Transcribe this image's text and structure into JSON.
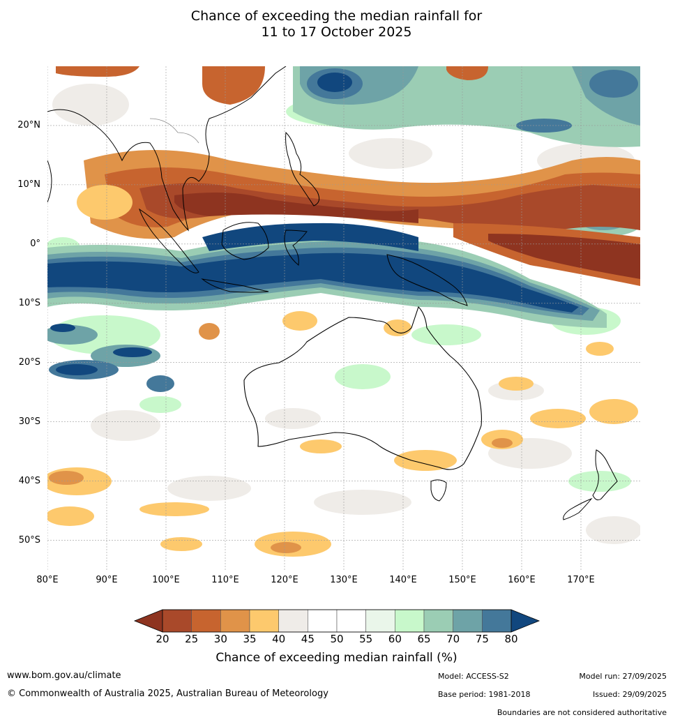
{
  "title": {
    "line1": "Chance of exceeding the median rainfall for",
    "line2": "11 to 17 October 2025"
  },
  "lat_ticks": [
    {
      "label": "20°N",
      "lat": 20
    },
    {
      "label": "10°N",
      "lat": 10
    },
    {
      "label": "0°",
      "lat": 0
    },
    {
      "label": "10°S",
      "lat": -10
    },
    {
      "label": "20°S",
      "lat": -20
    },
    {
      "label": "30°S",
      "lat": -30
    },
    {
      "label": "40°S",
      "lat": -40
    },
    {
      "label": "50°S",
      "lat": -50
    }
  ],
  "lon_ticks": [
    {
      "label": "80°E",
      "lon": 80
    },
    {
      "label": "90°E",
      "lon": 90
    },
    {
      "label": "100°E",
      "lon": 100
    },
    {
      "label": "110°E",
      "lon": 110
    },
    {
      "label": "120°E",
      "lon": 120
    },
    {
      "label": "130°E",
      "lon": 130
    },
    {
      "label": "140°E",
      "lon": 140
    },
    {
      "label": "150°E",
      "lon": 150
    },
    {
      "label": "160°E",
      "lon": 160
    },
    {
      "label": "170°E",
      "lon": 170
    }
  ],
  "extent": {
    "lon_min": 80,
    "lon_max": 180,
    "lat_min": -55,
    "lat_max": 30
  },
  "colorbar": {
    "title": "Chance of exceeding median rainfall (%)",
    "labels": [
      "20",
      "25",
      "30",
      "35",
      "40",
      "45",
      "50",
      "55",
      "60",
      "65",
      "70",
      "75",
      "80"
    ],
    "under_color": "#8e3420",
    "over_color": "#11477e",
    "colors": [
      "#a9492a",
      "#c7642f",
      "#e09349",
      "#fdc96d",
      "#efece8",
      "#ffffff",
      "#ffffff",
      "#eaf6ea",
      "#c8f8cb",
      "#9bcdb4",
      "#6ea3a7",
      "#44789a"
    ]
  },
  "footer": {
    "website": "www.bom.gov.au/climate",
    "copyright": "© Commonwealth of Australia 2025, Australian Bureau of Meteorology",
    "model": "Model: ACCESS-S2",
    "base_period": "Base period: 1981-2018",
    "model_run": "Model run: 27/09/2025",
    "issued": "Issued: 29/09/2025",
    "disclaimer": "Boundaries are not considered authoritative"
  }
}
